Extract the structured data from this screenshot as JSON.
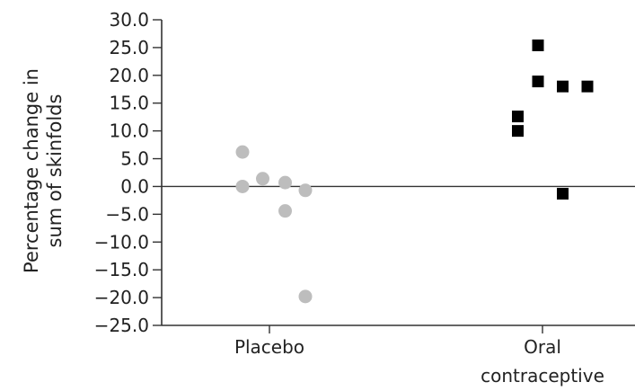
{
  "chart_data": {
    "type": "scatter",
    "title": "",
    "ylabel_lines": [
      "Percentage change in",
      "sum of skinfolds"
    ],
    "ylim": [
      -25,
      30
    ],
    "yticks": [
      30,
      25,
      20,
      15,
      10,
      5,
      0,
      -5,
      -10,
      -15,
      -20,
      -25
    ],
    "ytick_labels": [
      "30.0",
      "25.0",
      "20.0",
      "15.0",
      "10.0",
      "5.0",
      "0.0",
      "−5.0",
      "−10.0",
      "−15.0",
      "−20.0",
      "−25.0"
    ],
    "categories": [
      {
        "lines": [
          "Placebo"
        ]
      },
      {
        "lines": [
          "Oral",
          "contraceptive"
        ]
      }
    ],
    "zero_line": true,
    "grid": false,
    "series": [
      {
        "category": 0,
        "marker": "circle",
        "color": "#bdbdbd",
        "points": [
          {
            "offset": -0.12,
            "y": 6.2
          },
          {
            "offset": -0.12,
            "y": 0.0
          },
          {
            "offset": -0.03,
            "y": 1.4
          },
          {
            "offset": 0.07,
            "y": 0.7
          },
          {
            "offset": 0.16,
            "y": -0.7
          },
          {
            "offset": 0.07,
            "y": -4.4
          },
          {
            "offset": 0.16,
            "y": -19.8
          }
        ]
      },
      {
        "category": 1,
        "marker": "square",
        "color": "#000000",
        "points": [
          {
            "offset": -0.02,
            "y": 25.4
          },
          {
            "offset": -0.02,
            "y": 18.9
          },
          {
            "offset": 0.09,
            "y": 18.0
          },
          {
            "offset": 0.2,
            "y": 18.0
          },
          {
            "offset": -0.11,
            "y": 12.6
          },
          {
            "offset": -0.11,
            "y": 10.0
          },
          {
            "offset": 0.09,
            "y": -1.3
          }
        ]
      }
    ]
  }
}
